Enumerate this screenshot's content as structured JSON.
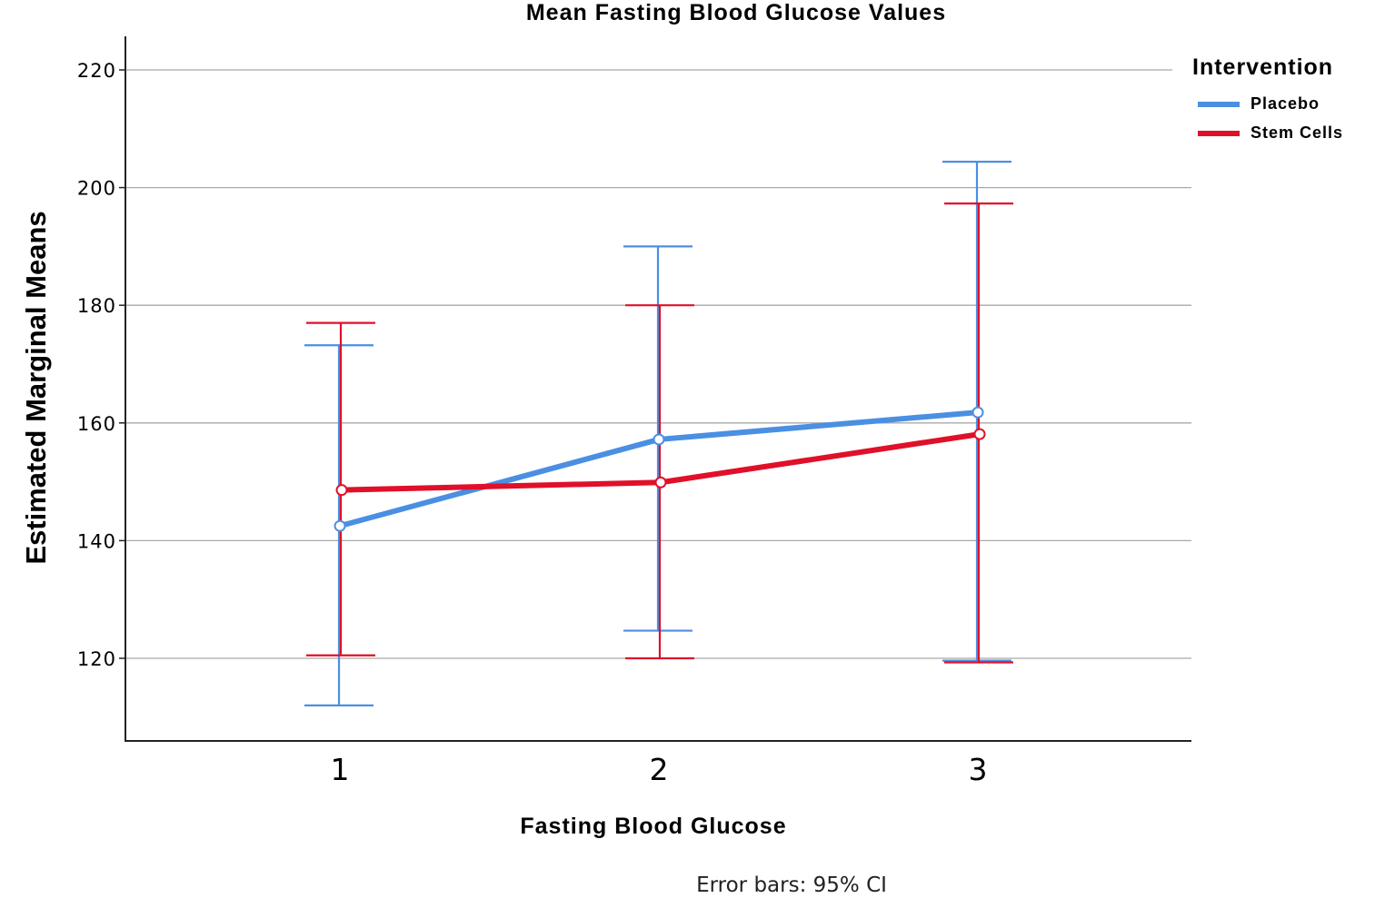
{
  "chart_data": {
    "type": "line",
    "title": "Mean Fasting Blood Glucose Values",
    "xlabel": "Fasting Blood Glucose",
    "ylabel": "Estimated Marginal Means",
    "categories": [
      "1",
      "2",
      "3"
    ],
    "yticks": [
      "120",
      "140",
      "160",
      "180",
      "200",
      "220"
    ],
    "ylim": [
      106,
      226
    ],
    "grid": true,
    "legend": {
      "title": "Intervention",
      "placement": "top-right"
    },
    "series": [
      {
        "name": "Placebo",
        "color": "#4a8fe2",
        "values": [
          142.5,
          157.2,
          161.8
        ],
        "ci_lower": [
          112.0,
          124.7,
          119.6
        ],
        "ci_upper": [
          173.2,
          190.0,
          204.4
        ]
      },
      {
        "name": "Stem Cells",
        "color": "#e0102a",
        "values": [
          148.6,
          149.9,
          158.1
        ],
        "ci_lower": [
          120.5,
          120.0,
          119.3
        ],
        "ci_upper": [
          177.0,
          180.0,
          197.3
        ]
      }
    ],
    "footnote": "Error bars: 95% CI"
  }
}
